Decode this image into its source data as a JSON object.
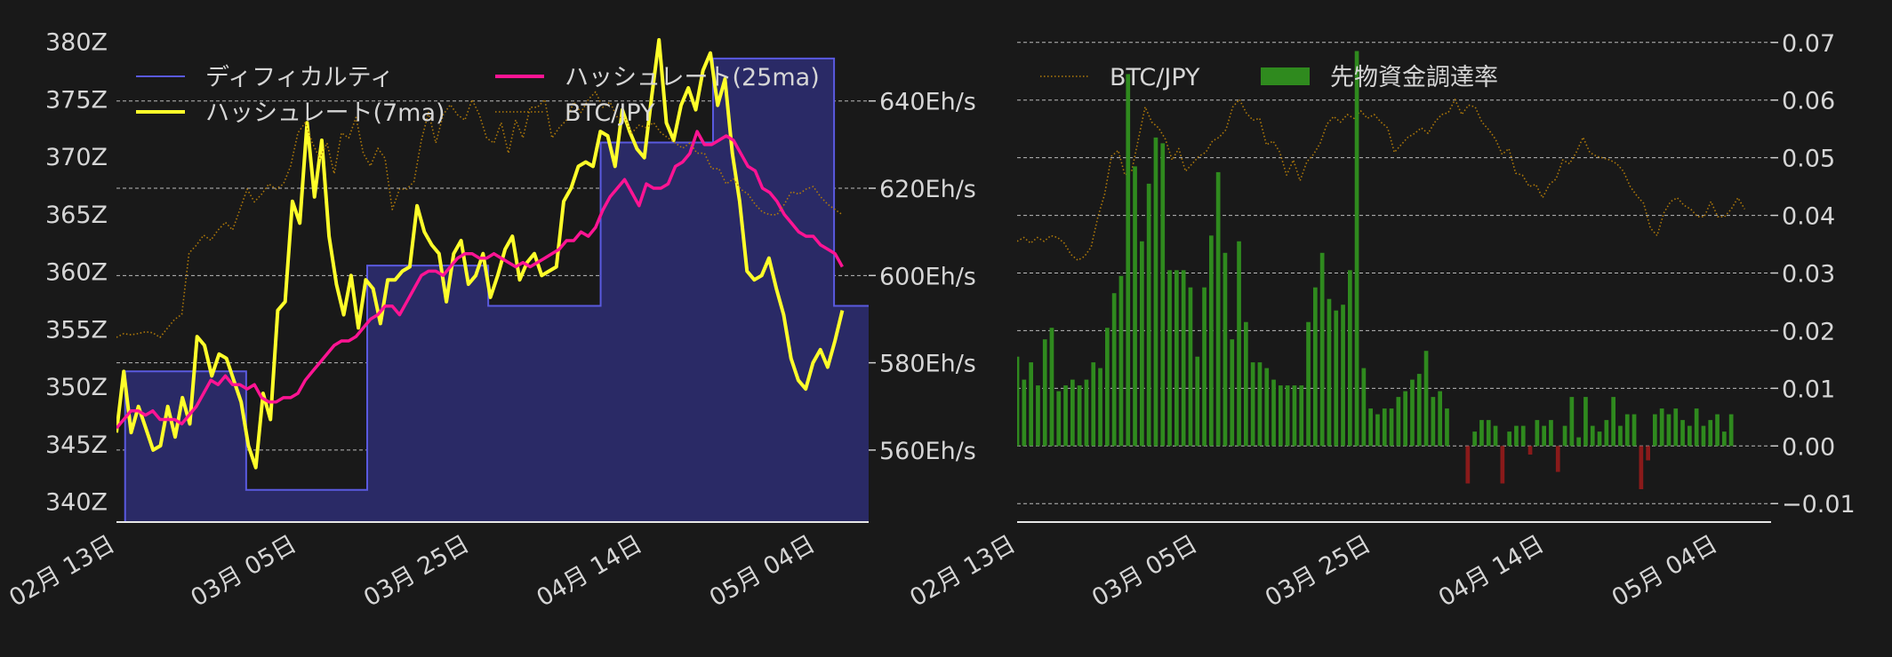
{
  "chart_data": [
    {
      "type": "line",
      "x_ticks": [
        "02月 13日",
        "03月 05日",
        "03月 25日",
        "04月 14日",
        "05月 04日"
      ],
      "x_tick_dates": [
        "2024-02-13",
        "2024-03-05",
        "2024-03-25",
        "2024-04-14",
        "2024-05-04"
      ],
      "x_range": [
        "2024-02-13",
        "2024-05-10"
      ],
      "y_left": {
        "ticks": [
          "340Z",
          "345Z",
          "350Z",
          "355Z",
          "360Z",
          "365Z",
          "370Z",
          "375Z",
          "380Z"
        ],
        "tick_values": [
          340,
          345,
          350,
          355,
          360,
          365,
          370,
          375,
          380
        ],
        "range": [
          338.2,
          380.5
        ]
      },
      "y_right": {
        "ticks": [
          "560Eh/s",
          "580Eh/s",
          "600Eh/s",
          "620Eh/s",
          "640Eh/s"
        ],
        "tick_values": [
          560,
          580,
          600,
          620,
          640
        ],
        "range": [
          543.5,
          655
        ]
      },
      "grid": true,
      "legend_placement": "top",
      "series": [
        {
          "name": "ディフィカルティ",
          "kind": "step-area",
          "axis": "left",
          "color": "#5a5ae0",
          "fill": "#2a2a66",
          "points": [
            [
              "2024-02-13",
              338.2
            ],
            [
              "2024-02-14",
              351.3
            ],
            [
              "2024-02-28",
              341.0
            ],
            [
              "2024-03-13",
              360.5
            ],
            [
              "2024-03-27",
              357.0
            ],
            [
              "2024-04-09",
              371.2
            ],
            [
              "2024-04-22",
              378.5
            ],
            [
              "2024-05-06",
              357.0
            ],
            [
              "2024-05-10",
              357.0
            ]
          ]
        },
        {
          "name": "ハッシュレート(7ma)",
          "kind": "line",
          "axis": "right",
          "color": "#ffff2a",
          "x_start": "2024-02-13",
          "values": [
            564,
            578,
            564,
            570,
            565,
            560,
            561,
            570,
            563,
            572,
            566,
            586,
            584,
            577,
            582,
            581,
            576,
            571,
            561,
            556,
            573,
            567,
            592,
            594,
            617,
            612,
            635,
            618,
            631,
            609,
            598,
            591,
            600,
            588,
            599,
            597,
            589,
            599,
            599,
            601,
            602,
            616,
            610,
            607,
            605,
            594,
            605,
            608,
            598,
            600,
            605,
            595,
            600,
            606,
            609,
            599,
            603,
            605,
            600,
            601,
            602,
            617,
            620,
            625,
            626,
            625,
            633,
            632,
            625,
            638,
            633,
            629,
            627,
            641,
            654,
            635,
            631,
            639,
            643,
            638,
            647,
            651,
            639,
            645,
            628,
            617,
            601,
            599,
            600,
            604,
            597,
            591,
            581,
            576,
            574,
            580,
            583,
            579,
            585,
            592
          ]
        },
        {
          "name": "ハッシュレート(25ma)",
          "kind": "line",
          "axis": "right",
          "color": "#ff1493",
          "x_start": "2024-02-13",
          "values": [
            565,
            567,
            569,
            569,
            568,
            569,
            567,
            567,
            567,
            566,
            568,
            570,
            573,
            576,
            575,
            577,
            575,
            575,
            574,
            575,
            572,
            571,
            571,
            572,
            572,
            573,
            576,
            578,
            580,
            582,
            584,
            585,
            585,
            586,
            588,
            590,
            591,
            593,
            593,
            591,
            594,
            597,
            600,
            601,
            601,
            600,
            602,
            604,
            605,
            605,
            604,
            604,
            605,
            604,
            603,
            602,
            603,
            602,
            603,
            604,
            605,
            606,
            608,
            608,
            610,
            609,
            611,
            615,
            618,
            620,
            622,
            619,
            616,
            621,
            620,
            620,
            621,
            625,
            626,
            628,
            633,
            630,
            630,
            631,
            632,
            631,
            628,
            625,
            624,
            620,
            619,
            617,
            614,
            612,
            610,
            609,
            609,
            607,
            606,
            605,
            602
          ]
        },
        {
          "name": "BTC/JPY",
          "kind": "dotted-line",
          "axis": "hidden",
          "color": "#b07a0a",
          "x_start": "2024-02-13",
          "values": [
            0.0,
            0.015,
            0.01,
            0.015,
            0.022,
            0.018,
            0.0,
            0.035,
            0.07,
            0.09,
            0.33,
            0.36,
            0.4,
            0.38,
            0.42,
            0.45,
            0.42,
            0.5,
            0.58,
            0.53,
            0.56,
            0.6,
            0.58,
            0.6,
            0.67,
            0.8,
            0.84,
            0.76,
            0.7,
            0.76,
            0.64,
            0.8,
            0.78,
            0.86,
            0.72,
            0.67,
            0.74,
            0.7,
            0.5,
            0.58,
            0.58,
            0.61,
            0.77,
            0.88,
            0.76,
            0.87,
            0.91,
            0.87,
            0.85,
            0.93,
            0.87,
            0.78,
            0.76,
            0.84,
            0.72,
            0.85,
            0.78,
            0.9,
            0.9,
            0.93,
            0.78,
            0.82,
            0.85,
            0.92,
            0.88,
            0.93,
            0.96,
            0.9,
            0.92,
            0.86,
            0.86,
            0.8,
            0.83,
            0.82,
            0.84,
            0.8,
            0.78,
            0.76,
            0.74,
            0.76,
            0.72,
            0.72,
            0.66,
            0.66,
            0.6,
            0.62,
            0.58,
            0.56,
            0.52,
            0.49,
            0.48,
            0.48,
            0.52,
            0.57,
            0.56,
            0.58,
            0.59,
            0.55,
            0.52,
            0.5,
            0.48
          ]
        }
      ]
    },
    {
      "type": "bar",
      "x_ticks": [
        "02月 13日",
        "03月 05日",
        "03月 25日",
        "04月 14日",
        "05月 04日"
      ],
      "x_tick_dates": [
        "2024-02-13",
        "2024-03-05",
        "2024-03-25",
        "2024-04-14",
        "2024-05-04"
      ],
      "x_range": [
        "2024-02-13",
        "2024-05-10"
      ],
      "y_right": {
        "ticks": [
          "−0.01",
          "0.00",
          "0.01",
          "0.02",
          "0.03",
          "0.04",
          "0.05",
          "0.06",
          "0.07"
        ],
        "tick_values": [
          -0.01,
          0.0,
          0.01,
          0.02,
          0.03,
          0.04,
          0.05,
          0.06,
          0.07
        ],
        "range": [
          -0.0132,
          0.0712
        ]
      },
      "grid": true,
      "legend_placement": "top",
      "series": [
        {
          "name": "BTC/JPY",
          "kind": "dotted-line",
          "axis": "hidden",
          "color": "#b07a0a",
          "x_start": "2024-02-13",
          "values": [
            0.25,
            0.27,
            0.24,
            0.27,
            0.25,
            0.28,
            0.27,
            0.24,
            0.18,
            0.15,
            0.17,
            0.22,
            0.38,
            0.5,
            0.7,
            0.73,
            0.6,
            0.62,
            0.79,
            0.96,
            0.88,
            0.85,
            0.79,
            0.68,
            0.74,
            0.62,
            0.66,
            0.7,
            0.72,
            0.78,
            0.8,
            0.84,
            0.96,
            1.0,
            0.93,
            0.89,
            0.9,
            0.76,
            0.78,
            0.72,
            0.6,
            0.68,
            0.57,
            0.67,
            0.71,
            0.77,
            0.87,
            0.91,
            0.88,
            0.92,
            0.9,
            0.94,
            0.9,
            0.92,
            0.88,
            0.85,
            0.72,
            0.76,
            0.8,
            0.82,
            0.85,
            0.82,
            0.88,
            0.92,
            0.93,
            1.0,
            0.92,
            0.97,
            0.96,
            0.88,
            0.84,
            0.79,
            0.71,
            0.74,
            0.61,
            0.6,
            0.54,
            0.55,
            0.48,
            0.55,
            0.58,
            0.68,
            0.66,
            0.72,
            0.8,
            0.72,
            0.7,
            0.69,
            0.68,
            0.66,
            0.62,
            0.54,
            0.49,
            0.45,
            0.32,
            0.28,
            0.4,
            0.46,
            0.48,
            0.44,
            0.42,
            0.38,
            0.38,
            0.46,
            0.38,
            0.38,
            0.42,
            0.48,
            0.42
          ]
        },
        {
          "name": "先物資金調達率",
          "kind": "bar",
          "axis": "right",
          "color_positive": "#2f8a1e",
          "color_negative": "#8a1a1a",
          "x_start": "2024-02-13",
          "x_step_days": 0.8,
          "values": [
            0.0155,
            0.0115,
            0.0145,
            0.0105,
            0.0185,
            0.0205,
            0.0095,
            0.0105,
            0.0115,
            0.0105,
            0.0115,
            0.0145,
            0.0135,
            0.0205,
            0.0265,
            0.0295,
            0.0645,
            0.0485,
            0.0355,
            0.0455,
            0.0535,
            0.0525,
            0.0305,
            0.0305,
            0.0305,
            0.0275,
            0.0155,
            0.0275,
            0.0365,
            0.0475,
            0.0335,
            0.0185,
            0.0355,
            0.0215,
            0.0145,
            0.0145,
            0.0135,
            0.0115,
            0.0105,
            0.0105,
            0.0105,
            0.0105,
            0.0215,
            0.0275,
            0.0335,
            0.0255,
            0.0235,
            0.0245,
            0.0305,
            0.0685,
            0.0135,
            0.0065,
            0.0055,
            0.0065,
            0.0065,
            0.0085,
            0.0095,
            0.0115,
            0.0125,
            0.0165,
            0.0085,
            0.0095,
            0.0065,
            0.0,
            0.0,
            -0.0065,
            0.0025,
            0.0045,
            0.0045,
            0.0035,
            -0.0065,
            0.0025,
            0.0035,
            0.0035,
            -0.0015,
            0.0045,
            0.0035,
            0.0045,
            -0.0045,
            0.0035,
            0.0085,
            0.0015,
            0.0085,
            0.0035,
            0.0025,
            0.0045,
            0.0085,
            0.0035,
            0.0055,
            0.0055,
            -0.0075,
            -0.0025,
            0.0055,
            0.0065,
            0.0055,
            0.0065,
            0.0045,
            0.0035,
            0.0065,
            0.0035,
            0.0045,
            0.0055,
            0.0025,
            0.0055
          ]
        }
      ]
    }
  ]
}
